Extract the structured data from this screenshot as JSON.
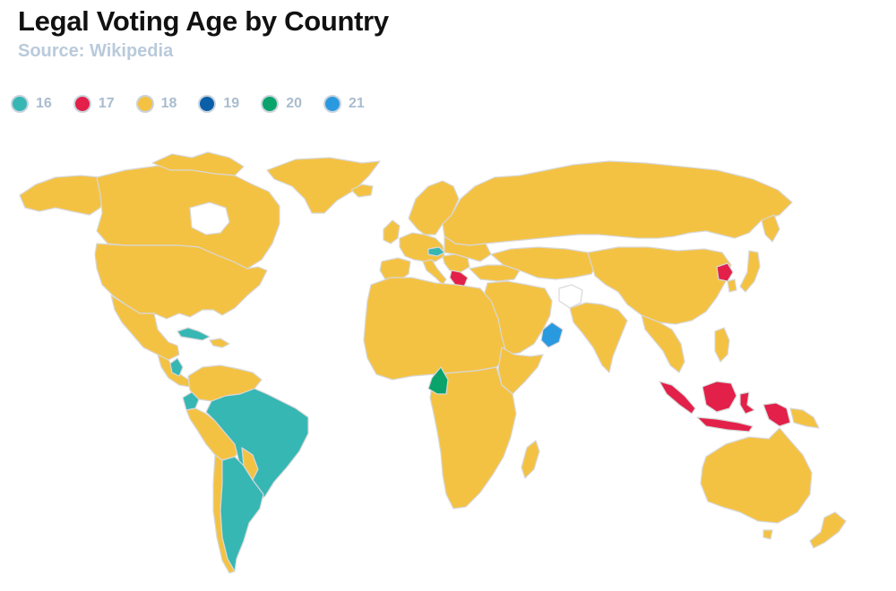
{
  "header": {
    "title": "Legal Voting Age by Country",
    "subtitle": "Source: Wikipedia"
  },
  "legend": [
    {
      "label": "16",
      "color": "#36b7b4"
    },
    {
      "label": "17",
      "color": "#e22049"
    },
    {
      "label": "18",
      "color": "#f4c243"
    },
    {
      "label": "19",
      "color": "#0a5fa8"
    },
    {
      "label": "20",
      "color": "#0aa36b"
    },
    {
      "label": "21",
      "color": "#2a9ae0"
    }
  ],
  "map": {
    "no_data_color": "#ffffff",
    "border_color": "#d8d8d8",
    "regions": [
      {
        "name": "Brazil",
        "age": "16"
      },
      {
        "name": "Argentina",
        "age": "16"
      },
      {
        "name": "Ecuador",
        "age": "16"
      },
      {
        "name": "Nicaragua",
        "age": "16"
      },
      {
        "name": "Cuba",
        "age": "16"
      },
      {
        "name": "Austria",
        "age": "16"
      },
      {
        "name": "Greece",
        "age": "17"
      },
      {
        "name": "North Korea",
        "age": "17"
      },
      {
        "name": "Indonesia",
        "age": "17"
      },
      {
        "name": "Timor-Leste",
        "age": "17"
      },
      {
        "name": "Cameroon",
        "age": "20"
      },
      {
        "name": "Oman",
        "age": "21"
      },
      {
        "name": "Rest of world",
        "age": "18"
      }
    ]
  }
}
